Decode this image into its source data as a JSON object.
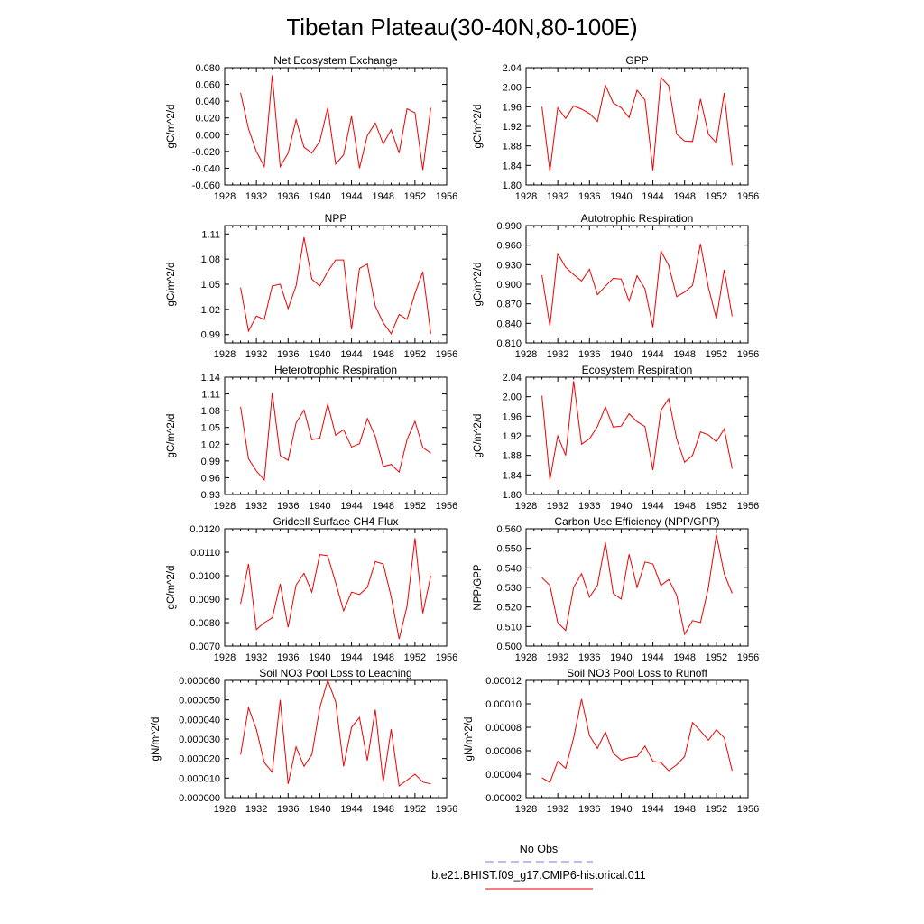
{
  "page": {
    "title": "Tibetan Plateau(30-40N,80-100E)"
  },
  "legend": {
    "entries": [
      {
        "label": "No Obs",
        "color": "#7a7ae0",
        "dash": "dashed"
      },
      {
        "label": "b.e21.BHIST.f09_g17.CMIP6-historical.011",
        "color": "#ee0000",
        "dash": "solid"
      }
    ]
  },
  "chart_data": [
    {
      "type": "line",
      "title": "Net Ecosystem Exchange",
      "ylabel": "gC/m^2/d",
      "xlim": [
        1928,
        1956
      ],
      "xticks": [
        1928,
        1932,
        1936,
        1940,
        1944,
        1948,
        1952,
        1956
      ],
      "ylim": [
        -0.06,
        0.08
      ],
      "yticks": [
        -0.06,
        -0.04,
        -0.02,
        0.0,
        0.02,
        0.04,
        0.06,
        0.08
      ],
      "ytick_labels": [
        "-0.060",
        "-0.040",
        "-0.020",
        "0.000",
        "0.020",
        "0.040",
        "0.060",
        "0.080"
      ],
      "series": [
        {
          "color": "#ee0000",
          "x": [
            1930,
            1931,
            1932,
            1933,
            1934,
            1935,
            1936,
            1937,
            1938,
            1939,
            1940,
            1941,
            1942,
            1943,
            1944,
            1945,
            1946,
            1947,
            1948,
            1949,
            1950,
            1951,
            1952,
            1953,
            1954
          ],
          "y": [
            0.05,
            0.007,
            -0.02,
            -0.038,
            0.071,
            -0.038,
            -0.022,
            0.018,
            -0.015,
            -0.022,
            -0.008,
            0.032,
            -0.035,
            -0.024,
            0.022,
            -0.04,
            -0.001,
            0.014,
            -0.011,
            0.006,
            -0.022,
            0.031,
            0.026,
            -0.042,
            0.032
          ]
        }
      ]
    },
    {
      "type": "line",
      "title": "GPP",
      "ylabel": "gC/m^2/d",
      "xlim": [
        1928,
        1956
      ],
      "xticks": [
        1928,
        1932,
        1936,
        1940,
        1944,
        1948,
        1952,
        1956
      ],
      "ylim": [
        1.8,
        2.04
      ],
      "yticks": [
        1.8,
        1.84,
        1.88,
        1.92,
        1.96,
        2.0,
        2.04
      ],
      "ytick_labels": [
        "1.80",
        "1.84",
        "1.88",
        "1.92",
        "1.96",
        "2.00",
        "2.04"
      ],
      "series": [
        {
          "color": "#ee0000",
          "x": [
            1930,
            1931,
            1932,
            1933,
            1934,
            1935,
            1936,
            1937,
            1938,
            1939,
            1940,
            1941,
            1942,
            1943,
            1944,
            1945,
            1946,
            1947,
            1948,
            1949,
            1950,
            1951,
            1952,
            1953,
            1954
          ],
          "y": [
            1.96,
            1.828,
            1.958,
            1.936,
            1.962,
            1.955,
            1.946,
            1.93,
            2.004,
            1.968,
            1.958,
            1.938,
            1.994,
            1.974,
            1.83,
            2.02,
            2.003,
            1.904,
            1.89,
            1.889,
            1.976,
            1.904,
            1.886,
            1.988,
            1.84
          ]
        }
      ]
    },
    {
      "type": "line",
      "title": "NPP",
      "ylabel": "gC/m^2/d",
      "xlim": [
        1928,
        1956
      ],
      "xticks": [
        1928,
        1932,
        1936,
        1940,
        1944,
        1948,
        1952,
        1956
      ],
      "ylim": [
        0.98,
        1.12
      ],
      "yticks": [
        0.99,
        1.02,
        1.05,
        1.08,
        1.11
      ],
      "ytick_labels": [
        "0.99",
        "1.02",
        "1.05",
        "1.08",
        "1.11"
      ],
      "series": [
        {
          "color": "#ee0000",
          "x": [
            1930,
            1931,
            1932,
            1933,
            1934,
            1935,
            1936,
            1937,
            1938,
            1939,
            1940,
            1941,
            1942,
            1943,
            1944,
            1945,
            1946,
            1947,
            1948,
            1949,
            1950,
            1951,
            1952,
            1953,
            1954
          ],
          "y": [
            1.046,
            0.994,
            1.012,
            1.008,
            1.048,
            1.05,
            1.021,
            1.048,
            1.106,
            1.056,
            1.048,
            1.065,
            1.079,
            1.079,
            0.996,
            1.069,
            1.074,
            1.024,
            1.004,
            0.991,
            1.014,
            1.008,
            1.039,
            1.065,
            0.991
          ]
        }
      ]
    },
    {
      "type": "line",
      "title": "Autotrophic Respiration",
      "ylabel": "gC/m^2/d",
      "xlim": [
        1928,
        1956
      ],
      "xticks": [
        1928,
        1932,
        1936,
        1940,
        1944,
        1948,
        1952,
        1956
      ],
      "ylim": [
        0.81,
        0.99
      ],
      "yticks": [
        0.81,
        0.84,
        0.87,
        0.9,
        0.93,
        0.96,
        0.99
      ],
      "ytick_labels": [
        "0.810",
        "0.840",
        "0.870",
        "0.900",
        "0.930",
        "0.960",
        "0.990"
      ],
      "series": [
        {
          "color": "#ee0000",
          "x": [
            1930,
            1931,
            1932,
            1933,
            1934,
            1935,
            1936,
            1937,
            1938,
            1939,
            1940,
            1941,
            1942,
            1943,
            1944,
            1945,
            1946,
            1947,
            1948,
            1949,
            1950,
            1951,
            1952,
            1953,
            1954
          ],
          "y": [
            0.914,
            0.836,
            0.947,
            0.926,
            0.915,
            0.905,
            0.923,
            0.884,
            0.897,
            0.909,
            0.908,
            0.874,
            0.913,
            0.893,
            0.834,
            0.951,
            0.929,
            0.881,
            0.888,
            0.898,
            0.962,
            0.895,
            0.847,
            0.922,
            0.851
          ]
        }
      ]
    },
    {
      "type": "line",
      "title": "Heterotrophic Respiration",
      "ylabel": "gC/m^2/d",
      "xlim": [
        1928,
        1956
      ],
      "xticks": [
        1928,
        1932,
        1936,
        1940,
        1944,
        1948,
        1952,
        1956
      ],
      "ylim": [
        0.93,
        1.14
      ],
      "yticks": [
        0.93,
        0.96,
        0.99,
        1.02,
        1.05,
        1.08,
        1.11,
        1.14
      ],
      "ytick_labels": [
        "0.93",
        "0.96",
        "0.99",
        "1.02",
        "1.05",
        "1.08",
        "1.11",
        "1.14"
      ],
      "series": [
        {
          "color": "#ee0000",
          "x": [
            1930,
            1931,
            1932,
            1933,
            1934,
            1935,
            1936,
            1937,
            1938,
            1939,
            1940,
            1941,
            1942,
            1943,
            1944,
            1945,
            1946,
            1947,
            1948,
            1949,
            1950,
            1951,
            1952,
            1953,
            1954
          ],
          "y": [
            1.087,
            0.994,
            0.972,
            0.956,
            1.112,
            1.0,
            0.991,
            1.058,
            1.081,
            1.028,
            1.031,
            1.092,
            1.036,
            1.046,
            1.015,
            1.021,
            1.066,
            1.034,
            0.98,
            0.984,
            0.97,
            1.028,
            1.061,
            1.014,
            1.004
          ]
        }
      ]
    },
    {
      "type": "line",
      "title": "Ecosystem Respiration",
      "ylabel": "gC/m^2/d",
      "xlim": [
        1928,
        1956
      ],
      "xticks": [
        1928,
        1932,
        1936,
        1940,
        1944,
        1948,
        1952,
        1956
      ],
      "ylim": [
        1.8,
        2.04
      ],
      "yticks": [
        1.8,
        1.84,
        1.88,
        1.92,
        1.96,
        2.0,
        2.04
      ],
      "ytick_labels": [
        "1.80",
        "1.84",
        "1.88",
        "1.92",
        "1.96",
        "2.00",
        "2.04"
      ],
      "series": [
        {
          "color": "#ee0000",
          "x": [
            1930,
            1931,
            1932,
            1933,
            1934,
            1935,
            1936,
            1937,
            1938,
            1939,
            1940,
            1941,
            1942,
            1943,
            1944,
            1945,
            1946,
            1947,
            1948,
            1949,
            1950,
            1951,
            1952,
            1953,
            1954
          ],
          "y": [
            2.002,
            1.83,
            1.92,
            1.88,
            2.032,
            1.903,
            1.914,
            1.939,
            1.979,
            1.938,
            1.94,
            1.965,
            1.949,
            1.939,
            1.85,
            1.972,
            1.996,
            1.914,
            1.866,
            1.88,
            1.928,
            1.922,
            1.908,
            1.934,
            1.853
          ]
        }
      ]
    },
    {
      "type": "line",
      "title": "Gridcell Surface CH4 Flux",
      "ylabel": "gC/m^2/d",
      "xlim": [
        1928,
        1956
      ],
      "xticks": [
        1928,
        1932,
        1936,
        1940,
        1944,
        1948,
        1952,
        1956
      ],
      "ylim": [
        0.007,
        0.012
      ],
      "yticks": [
        0.007,
        0.008,
        0.009,
        0.01,
        0.011,
        0.012
      ],
      "ytick_labels": [
        "0.0070",
        "0.0080",
        "0.0090",
        "0.0100",
        "0.0110",
        "0.0120"
      ],
      "series": [
        {
          "color": "#ee0000",
          "x": [
            1930,
            1931,
            1932,
            1933,
            1934,
            1935,
            1936,
            1937,
            1938,
            1939,
            1940,
            1941,
            1942,
            1943,
            1944,
            1945,
            1946,
            1947,
            1948,
            1949,
            1950,
            1951,
            1952,
            1953,
            1954
          ],
          "y": [
            0.0088,
            0.0105,
            0.0077,
            0.008,
            0.0082,
            0.00965,
            0.0078,
            0.0096,
            0.0101,
            0.0093,
            0.0109,
            0.01085,
            0.0097,
            0.0085,
            0.0093,
            0.0092,
            0.0095,
            0.0106,
            0.0105,
            0.0091,
            0.0073,
            0.0087,
            0.0116,
            0.0084,
            0.01
          ]
        }
      ]
    },
    {
      "type": "line",
      "title": "Carbon Use Efficiency (NPP/GPP)",
      "ylabel": "NPP/GPP",
      "xlim": [
        1928,
        1956
      ],
      "xticks": [
        1928,
        1932,
        1936,
        1940,
        1944,
        1948,
        1952,
        1956
      ],
      "ylim": [
        0.5,
        0.56
      ],
      "yticks": [
        0.5,
        0.51,
        0.52,
        0.53,
        0.54,
        0.55,
        0.56
      ],
      "ytick_labels": [
        "0.500",
        "0.510",
        "0.520",
        "0.530",
        "0.540",
        "0.550",
        "0.560"
      ],
      "series": [
        {
          "color": "#ee0000",
          "x": [
            1930,
            1931,
            1932,
            1933,
            1934,
            1935,
            1936,
            1937,
            1938,
            1939,
            1940,
            1941,
            1942,
            1943,
            1944,
            1945,
            1946,
            1947,
            1948,
            1949,
            1950,
            1951,
            1952,
            1953,
            1954
          ],
          "y": [
            0.535,
            0.531,
            0.512,
            0.508,
            0.53,
            0.537,
            0.525,
            0.531,
            0.553,
            0.527,
            0.524,
            0.547,
            0.53,
            0.543,
            0.542,
            0.531,
            0.534,
            0.526,
            0.506,
            0.513,
            0.512,
            0.53,
            0.557,
            0.537,
            0.527
          ]
        }
      ]
    },
    {
      "type": "line",
      "title": "Soil NO3 Pool Loss to Leaching",
      "ylabel": "gN/m^2/d",
      "xlim": [
        1928,
        1956
      ],
      "xticks": [
        1928,
        1932,
        1936,
        1940,
        1944,
        1948,
        1952,
        1956
      ],
      "ylim": [
        0.0,
        6e-05
      ],
      "yticks": [
        0.0,
        1e-05,
        2e-05,
        3e-05,
        4e-05,
        5e-05,
        6e-05
      ],
      "ytick_labels": [
        "0.000000",
        "0.000010",
        "0.000020",
        "0.000030",
        "0.000040",
        "0.000050",
        "0.000060"
      ],
      "series": [
        {
          "color": "#ee0000",
          "x": [
            1930,
            1931,
            1932,
            1933,
            1934,
            1935,
            1936,
            1937,
            1938,
            1939,
            1940,
            1941,
            1942,
            1943,
            1944,
            1945,
            1946,
            1947,
            1948,
            1949,
            1950,
            1951,
            1952,
            1953,
            1954
          ],
          "y": [
            2.2e-05,
            4.6e-05,
            3.5e-05,
            1.8e-05,
            1.3e-05,
            5e-05,
            7e-06,
            2.6e-05,
            1.6e-05,
            2.2e-05,
            4.6e-05,
            6e-05,
            4.9e-05,
            1.6e-05,
            3.6e-05,
            4.1e-05,
            1.9e-05,
            4.5e-05,
            8e-06,
            3.5e-05,
            6e-06,
            9e-06,
            1.2e-05,
            8e-06,
            7e-06
          ]
        }
      ]
    },
    {
      "type": "line",
      "title": "Soil NO3 Pool Loss to Runoff",
      "ylabel": "gN/m^2/d",
      "xlim": [
        1928,
        1956
      ],
      "xticks": [
        1928,
        1932,
        1936,
        1940,
        1944,
        1948,
        1952,
        1956
      ],
      "ylim": [
        2e-05,
        0.00012
      ],
      "yticks": [
        2e-05,
        4e-05,
        6e-05,
        8e-05,
        0.0001,
        0.00012
      ],
      "ytick_labels": [
        "0.00002",
        "0.00004",
        "0.00006",
        "0.00008",
        "0.00010",
        "0.00012"
      ],
      "series": [
        {
          "color": "#ee0000",
          "x": [
            1930,
            1931,
            1932,
            1933,
            1934,
            1935,
            1936,
            1937,
            1938,
            1939,
            1940,
            1941,
            1942,
            1943,
            1944,
            1945,
            1946,
            1947,
            1948,
            1949,
            1950,
            1951,
            1952,
            1953,
            1954
          ],
          "y": [
            3.7e-05,
            3.3e-05,
            5.1e-05,
            4.5e-05,
            7.1e-05,
            0.000104,
            7.3e-05,
            6.2e-05,
            7.6e-05,
            5.8e-05,
            5.2e-05,
            5.4e-05,
            5.5e-05,
            6.4e-05,
            5.1e-05,
            5e-05,
            4.3e-05,
            4.8e-05,
            5.5e-05,
            8.4e-05,
            7.7e-05,
            6.9e-05,
            7.8e-05,
            7.1e-05,
            4.3e-05
          ]
        }
      ]
    }
  ]
}
